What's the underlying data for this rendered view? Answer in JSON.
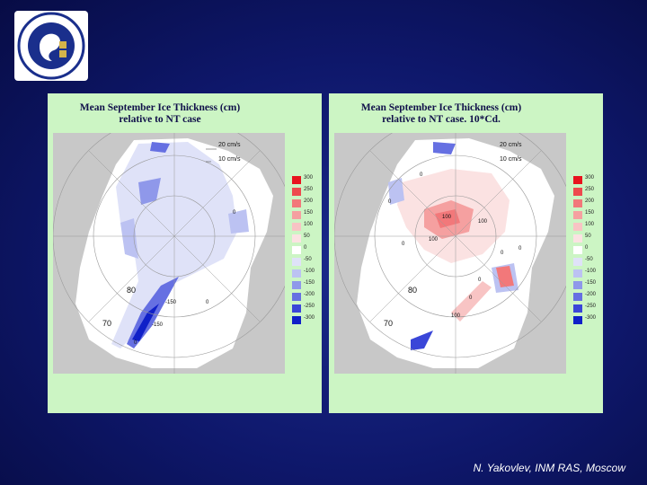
{
  "panels": [
    {
      "title_line1": "Mean September Ice Thickness (cm)",
      "title_line2": "relative to NT case",
      "vector_scale": [
        "20 cm/s",
        "10 cm/s"
      ],
      "contour_labels": [
        "0",
        "-150",
        "-150",
        "0",
        "0"
      ],
      "lat_labels": [
        "80",
        "70"
      ]
    },
    {
      "title_line1": "Mean September Ice Thickness (cm)",
      "title_line2": "relative to NT case. 10*Cd.",
      "vector_scale": [
        "20 cm/s",
        "10 cm/s"
      ],
      "contour_labels": [
        "0",
        "0",
        "100",
        "100",
        "100",
        "0",
        "0",
        "0",
        "100",
        "0",
        "0"
      ],
      "lat_labels": [
        "80",
        "70"
      ]
    }
  ],
  "colorbar": {
    "levels": [
      "300",
      "250",
      "200",
      "150",
      "100",
      "50",
      "0",
      "-50",
      "-100",
      "-150",
      "-200",
      "-250",
      "-300"
    ],
    "colors": [
      "#e8141e",
      "#ee4a4e",
      "#f2787a",
      "#f5a0a0",
      "#f8c4c4",
      "#fbe2e2",
      "#ffffff",
      "#dfe2f8",
      "#bcc2f2",
      "#8f98ea",
      "#6670e2",
      "#3a46d8",
      "#1020c8"
    ]
  },
  "footer": {
    "author": "N. Yakovlev, INM RAS, Moscow"
  },
  "colors": {
    "background": "#0e176a",
    "panel": "#ccf5c4",
    "map_bg": "#c8c8c8"
  },
  "icons": [
    "institute-logo"
  ]
}
